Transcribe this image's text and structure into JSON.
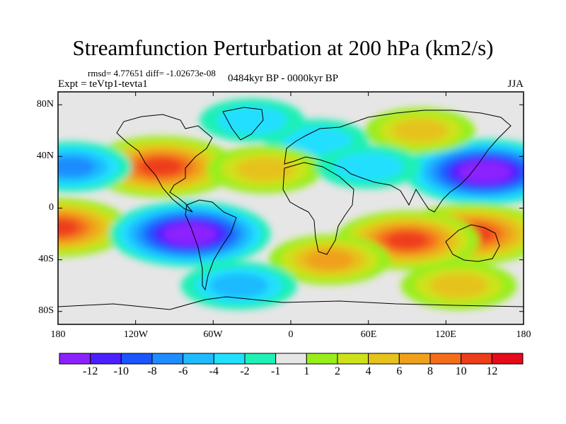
{
  "title": "Streamfunction Perturbation at 200 hPa (km2/s)",
  "stats": "rmsd= 4.77651 diff= -1.02673e-08",
  "experiment": "Expt = teVtp1-tevta1",
  "period": "0484kyr BP - 0000kyr BP",
  "season": "JJA",
  "axes": {
    "lat_labels": [
      "80N",
      "40N",
      "0",
      "40S",
      "80S"
    ],
    "lon_labels": [
      "180",
      "120W",
      "60W",
      "0",
      "60E",
      "120E",
      "180"
    ]
  },
  "colorbar": {
    "colors": [
      "#8c21ff",
      "#4c1fff",
      "#1a55ff",
      "#1f8cff",
      "#1fbaff",
      "#20dfff",
      "#1ff0b6",
      "#e6e6e6",
      "#98ee1b",
      "#cde21a",
      "#e6c21a",
      "#f0a01a",
      "#f46d1a",
      "#ee3d1a",
      "#e60a1a"
    ],
    "labels": [
      "-12",
      "-10",
      "-8",
      "-6",
      "-4",
      "-2",
      "-1",
      "1",
      "2",
      "4",
      "6",
      "8",
      "10",
      "12"
    ]
  },
  "chart_data": {
    "type": "heatmap",
    "variable": "Streamfunction Perturbation at 200 hPa",
    "units": "km2/s",
    "levels": [
      -12,
      -10,
      -8,
      -6,
      -4,
      -2,
      -1,
      1,
      2,
      4,
      6,
      8,
      10,
      12
    ],
    "xlim": [
      -180,
      180
    ],
    "ylim": [
      -90,
      90
    ],
    "features": [
      {
        "lon": -100,
        "lat": 32,
        "value": 11
      },
      {
        "lon": -180,
        "lat": -15,
        "value": 10
      },
      {
        "lon": -78,
        "lat": -20,
        "value": -13
      },
      {
        "lon": 150,
        "lat": 28,
        "value": -13
      },
      {
        "lon": -170,
        "lat": 32,
        "value": -6
      },
      {
        "lon": 140,
        "lat": -20,
        "value": 11
      },
      {
        "lon": 90,
        "lat": -25,
        "value": 10
      },
      {
        "lon": 30,
        "lat": -40,
        "value": 6
      },
      {
        "lon": 130,
        "lat": -60,
        "value": 5
      },
      {
        "lon": -40,
        "lat": -60,
        "value": -5
      },
      {
        "lon": 20,
        "lat": 52,
        "value": -3
      },
      {
        "lon": -20,
        "lat": 30,
        "value": 5
      },
      {
        "lon": 100,
        "lat": 60,
        "value": 4
      },
      {
        "lon": 60,
        "lat": 32,
        "value": -3
      },
      {
        "lon": -30,
        "lat": 68,
        "value": -3
      }
    ]
  }
}
